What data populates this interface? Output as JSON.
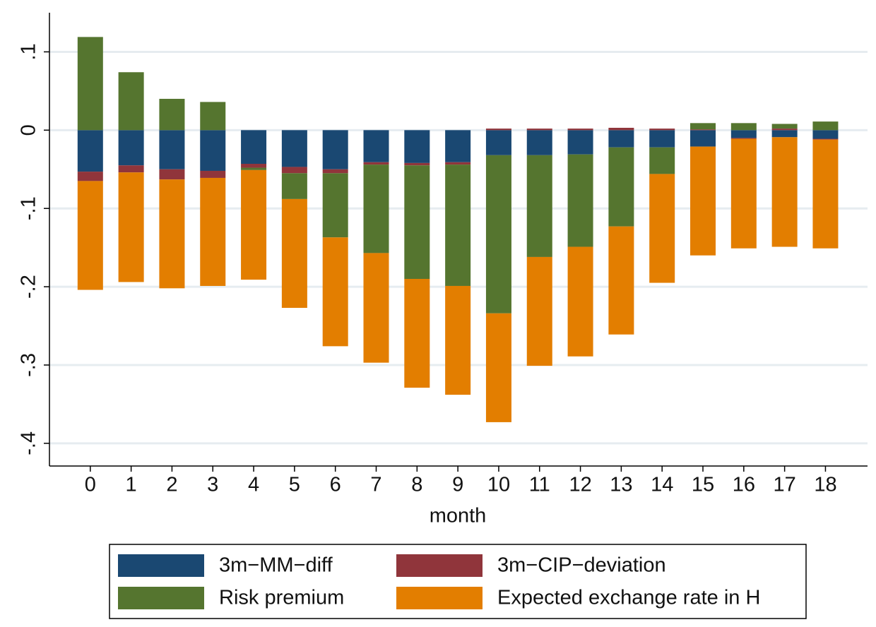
{
  "chart_data": {
    "type": "bar",
    "stacked": true,
    "x_label": "month",
    "x": [
      0,
      1,
      2,
      3,
      4,
      5,
      6,
      7,
      8,
      9,
      10,
      11,
      12,
      13,
      14,
      15,
      16,
      17,
      18
    ],
    "xlim": [
      -1,
      19.03
    ],
    "xticks": [
      0,
      1,
      2,
      3,
      4,
      5,
      6,
      7,
      8,
      9,
      10,
      11,
      12,
      13,
      14,
      15,
      16,
      17,
      18
    ],
    "ylim": [
      -0.429,
      0.15
    ],
    "yticks": [
      {
        "value": -0.4,
        "label": "-.4"
      },
      {
        "value": -0.3,
        "label": "-.3"
      },
      {
        "value": -0.2,
        "label": "-.2"
      },
      {
        "value": -0.1,
        "label": "-.1"
      },
      0,
      {
        "value": 0.1,
        "label": ".1"
      }
    ],
    "grid": true,
    "legend_position": "bottom",
    "series": [
      {
        "name": "3m−MM−diff",
        "color": "#1a4872",
        "values": [
          -0.053,
          -0.045,
          -0.05,
          -0.052,
          -0.043,
          -0.047,
          -0.05,
          -0.041,
          -0.042,
          -0.041,
          -0.032,
          -0.032,
          -0.031,
          -0.022,
          -0.022,
          -0.021,
          -0.01,
          -0.009,
          -0.011
        ]
      },
      {
        "name": "3m−CIP−deviation",
        "color": "#90353b",
        "values": [
          -0.012,
          -0.009,
          -0.013,
          -0.009,
          -0.005,
          -0.008,
          -0.005,
          -0.003,
          -0.003,
          -0.003,
          0.002,
          0.002,
          0.002,
          0.003,
          0.002,
          0.001,
          -0.001,
          0.002,
          -0.001
        ]
      },
      {
        "name": "Risk premium",
        "color": "#55752f",
        "values": [
          0.119,
          0.074,
          0.04,
          0.036,
          -0.003,
          -0.033,
          -0.082,
          -0.113,
          -0.145,
          -0.155,
          -0.202,
          -0.13,
          -0.118,
          -0.101,
          -0.034,
          0.008,
          0.009,
          0.006,
          0.011
        ]
      },
      {
        "name": "Expected exchange rate in H",
        "color": "#e37e00",
        "values": [
          -0.139,
          -0.14,
          -0.139,
          -0.138,
          -0.14,
          -0.139,
          -0.139,
          -0.14,
          -0.139,
          -0.139,
          -0.139,
          -0.139,
          -0.14,
          -0.138,
          -0.139,
          -0.139,
          -0.14,
          -0.14,
          -0.139
        ]
      }
    ]
  }
}
